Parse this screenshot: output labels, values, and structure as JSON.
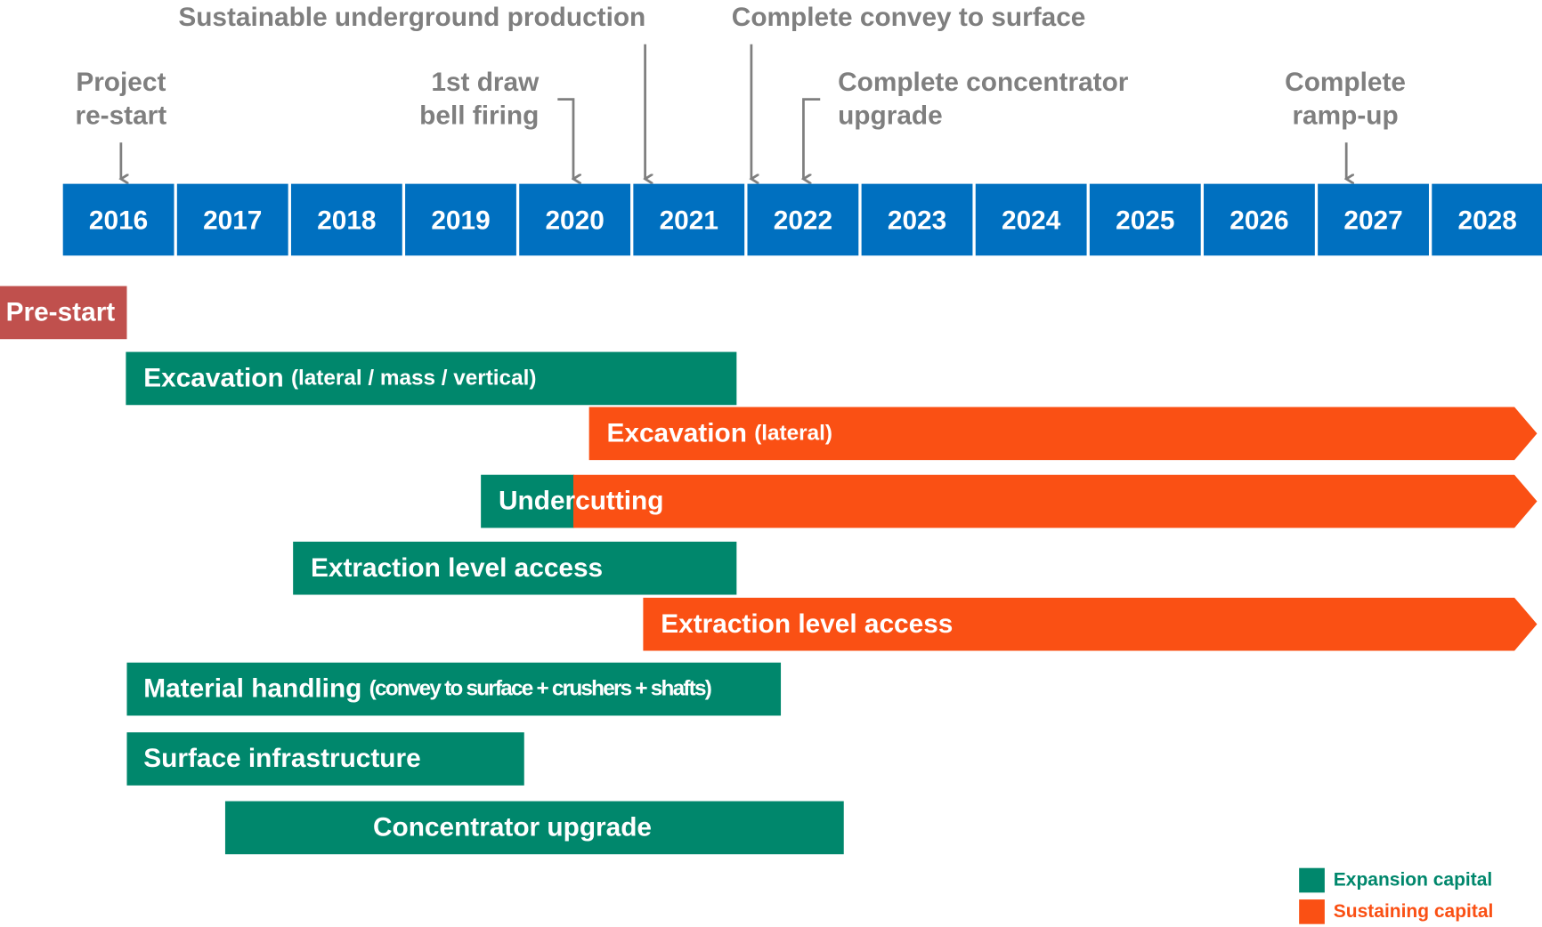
{
  "years": [
    "2016",
    "2017",
    "2018",
    "2019",
    "2020",
    "2021",
    "2022",
    "2023",
    "2024",
    "2025",
    "2026",
    "2027",
    "2028"
  ],
  "milestones": [
    {
      "lines": [
        "Project",
        "re-start"
      ]
    },
    {
      "lines": [
        "1st draw",
        "bell firing"
      ]
    },
    {
      "lines": [
        "Sustainable underground production"
      ]
    },
    {
      "lines": [
        "Complete convey to surface"
      ]
    },
    {
      "lines": [
        "Complete concentrator",
        "upgrade"
      ]
    },
    {
      "lines": [
        "Complete",
        "ramp-up"
      ]
    }
  ],
  "bars": [
    {
      "label": "Pre-start"
    },
    {
      "label": "Excavation",
      "sublabel": "(lateral / mass / vertical)"
    },
    {
      "label": "Excavation",
      "sublabel": "(lateral)"
    },
    {
      "label": "Undercutting"
    },
    {
      "label": "Extraction level access"
    },
    {
      "label": "Extraction level access"
    },
    {
      "label": "Material handling",
      "sublabel": "(convey to surface + crushers + shafts)"
    },
    {
      "label": "Surface infrastructure"
    },
    {
      "label": "Concentrator upgrade"
    }
  ],
  "legend": [
    {
      "label": "Expansion capital",
      "color": "#00876c"
    },
    {
      "label": "Sustaining capital",
      "color": "#fa5014"
    }
  ]
}
